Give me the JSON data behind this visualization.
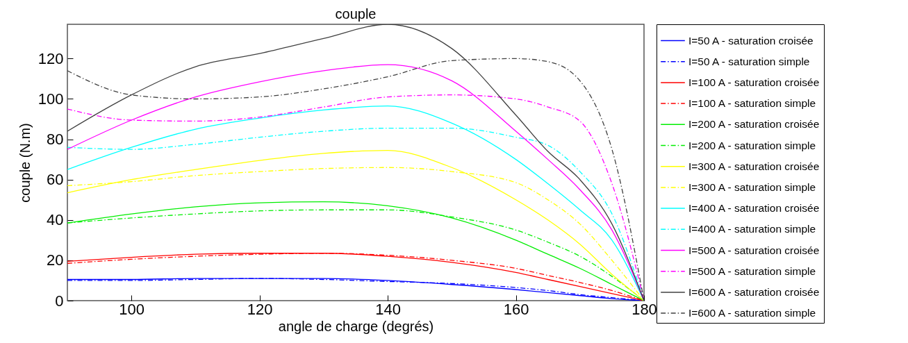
{
  "chart_data": {
    "type": "line",
    "title": "couple",
    "xlabel": "angle de charge (degrés)",
    "ylabel": "couple (N.m)",
    "x": [
      90,
      100,
      110,
      120,
      130,
      140,
      150,
      160,
      165,
      170,
      175,
      180
    ],
    "xlim": [
      90,
      180
    ],
    "xticks": [
      100,
      120,
      140,
      160,
      180
    ],
    "ylim": [
      0,
      137
    ],
    "yticks": [
      0,
      20,
      40,
      60,
      80,
      100,
      120
    ],
    "grid": false,
    "legend": "right",
    "series": [
      {
        "name": "I=50 A - saturation croisée",
        "color": "#0000ff",
        "line_style": "solid",
        "values": [
          10.5,
          10.5,
          11,
          11,
          11,
          10,
          8,
          5.5,
          4,
          2.5,
          1,
          0
        ]
      },
      {
        "name": "I=50 A - saturation simple",
        "color": "#0000ff",
        "line_style": "dashed",
        "values": [
          10,
          10,
          10.5,
          11,
          10.5,
          9.5,
          8.5,
          6.5,
          5,
          3,
          1.5,
          0
        ]
      },
      {
        "name": "I=100 A - saturation croisée",
        "color": "#ff0000",
        "line_style": "solid",
        "values": [
          19.5,
          21.5,
          23,
          23.5,
          23.5,
          22,
          19,
          14,
          10.5,
          7,
          3.5,
          0
        ]
      },
      {
        "name": "I=100 A - saturation simple",
        "color": "#ff0000",
        "line_style": "dashed",
        "values": [
          18.5,
          20.5,
          22,
          23,
          23.5,
          22.5,
          20,
          16,
          12.5,
          9,
          5,
          0
        ]
      },
      {
        "name": "I=200 A - saturation croisée",
        "color": "#00ee00",
        "line_style": "solid",
        "values": [
          38.5,
          43,
          46.5,
          48.5,
          49,
          47,
          41,
          30,
          23,
          16,
          8,
          0
        ]
      },
      {
        "name": "I=200 A - saturation simple",
        "color": "#00ee00",
        "line_style": "dashed",
        "values": [
          38.5,
          41,
          43,
          44.5,
          45,
          45,
          41.5,
          35,
          29,
          22,
          12,
          0
        ]
      },
      {
        "name": "I=300 A - saturation croisée",
        "color": "#ffff00",
        "line_style": "solid",
        "values": [
          53.5,
          60,
          65,
          69.5,
          73,
          74.5,
          66,
          50,
          40,
          28,
          13,
          0
        ]
      },
      {
        "name": "I=300 A - saturation simple",
        "color": "#ffff00",
        "line_style": "dashed",
        "values": [
          57,
          59,
          62,
          64,
          65.5,
          66,
          64,
          58.5,
          50,
          38,
          20,
          0
        ]
      },
      {
        "name": "I=400 A - saturation croisée",
        "color": "#00ffff",
        "line_style": "solid",
        "values": [
          65,
          76,
          85,
          90.5,
          94.5,
          96.5,
          88,
          70,
          58,
          45,
          30,
          0
        ]
      },
      {
        "name": "I=400 A - saturation simple",
        "color": "#00ffff",
        "line_style": "dashed",
        "values": [
          76,
          75,
          77.5,
          81,
          84,
          85.5,
          85.5,
          81,
          77,
          64,
          43,
          0
        ]
      },
      {
        "name": "I=500 A - saturation croisée",
        "color": "#ff00ff",
        "line_style": "solid",
        "values": [
          75,
          89.5,
          101,
          108.5,
          114,
          117,
          109,
          84,
          70,
          55,
          35,
          0
        ]
      },
      {
        "name": "I=500 A - saturation simple",
        "color": "#ff00ff",
        "line_style": "dashed",
        "values": [
          95,
          89.5,
          89,
          91,
          96,
          101,
          102,
          100,
          96,
          89,
          58,
          0
        ]
      },
      {
        "name": "I=600 A - saturation croisée",
        "color": "#404040",
        "line_style": "solid",
        "values": [
          84,
          102,
          116,
          122.5,
          130,
          137,
          125,
          92,
          74,
          60,
          38,
          0
        ]
      },
      {
        "name": "I=600 A - saturation simple",
        "color": "#404040",
        "line_style": "dashed",
        "values": [
          114,
          102,
          100,
          101,
          105,
          111,
          119,
          120,
          118.5,
          109,
          75,
          0
        ]
      }
    ]
  }
}
